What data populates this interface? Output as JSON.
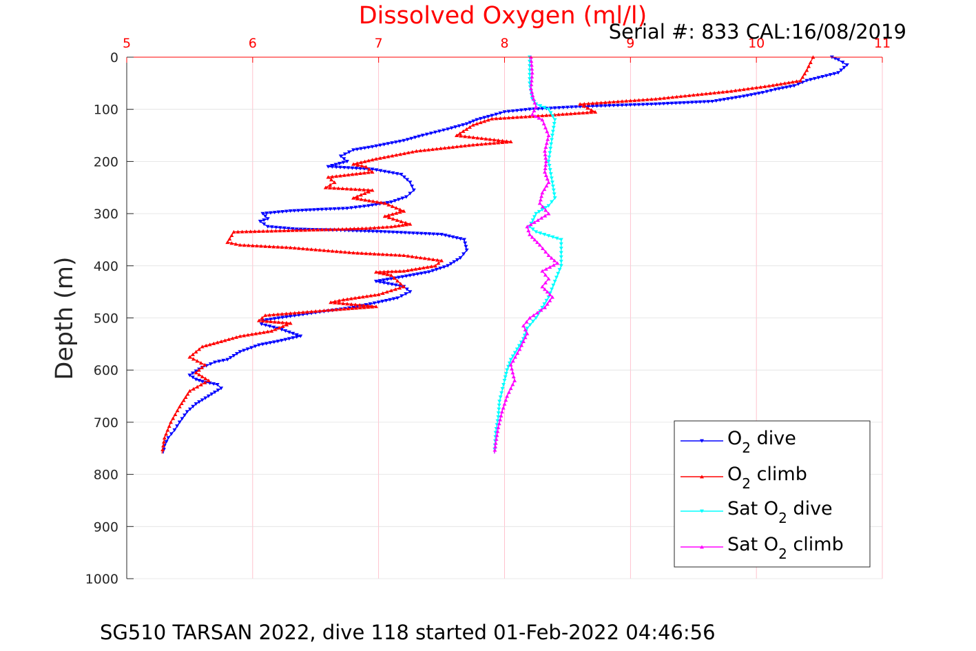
{
  "chart_data": {
    "type": "line",
    "title": "Dissolved Oxygen (ml/l)",
    "subtitle": "Serial #: 833  CAL:16/08/2019",
    "footer": "SG510 TARSAN 2022, dive 118 started 01-Feb-2022 04:46:56",
    "xlabel": "",
    "ylabel": "Depth (m)",
    "xlim": [
      5,
      11
    ],
    "ylim": [
      0,
      1000
    ],
    "y_reversed": true,
    "x_ticks": [
      "5",
      "6",
      "7",
      "8",
      "9",
      "10",
      "11"
    ],
    "y_ticks": [
      "0",
      "100",
      "200",
      "300",
      "400",
      "500",
      "600",
      "700",
      "800",
      "900",
      "1000"
    ],
    "x_axis_position": "top",
    "grid": true,
    "legend": {
      "position": "bottom-right",
      "entries": [
        {
          "prefix": "O",
          "sub": "2",
          "suffix": " dive",
          "color": "#0000ff",
          "marker": "down-triangle"
        },
        {
          "prefix": "O",
          "sub": "2",
          "suffix": " climb",
          "color": "#ff0000",
          "marker": "up-triangle"
        },
        {
          "prefix": "Sat O",
          "sub": "2",
          "suffix": " dive",
          "color": "#00ffff",
          "marker": "down-triangle"
        },
        {
          "prefix": "Sat O",
          "sub": "2",
          "suffix": " climb",
          "color": "#ff00ff",
          "marker": "up-triangle"
        }
      ]
    },
    "series": [
      {
        "name": "O2 dive",
        "color": "#0000ff",
        "marker": "down-triangle",
        "x": [
          10.6,
          10.65,
          10.72,
          10.65,
          10.4,
          10.3,
          10.15,
          10.05,
          9.9,
          9.65,
          9.2,
          8.6,
          8.2,
          8.0,
          7.9,
          7.78,
          7.7,
          7.55,
          7.35,
          7.2,
          6.95,
          6.8,
          6.7,
          6.75,
          6.6,
          6.95,
          7.18,
          7.25,
          7.28,
          7.22,
          7.1,
          6.92,
          6.75,
          6.55,
          6.3,
          6.08,
          6.12,
          6.06,
          6.12,
          6.35,
          6.7,
          7.05,
          7.5,
          7.68,
          7.7,
          7.65,
          7.55,
          7.4,
          7.22,
          7.1,
          6.98,
          7.2,
          7.25,
          7.15,
          7.0,
          6.8,
          6.5,
          6.3,
          6.08,
          6.07,
          6.2,
          6.38,
          6.2,
          6.05,
          5.9,
          5.8,
          5.7,
          5.6,
          5.55,
          5.5,
          5.55,
          5.6,
          5.72,
          5.75,
          5.65,
          5.55,
          5.48,
          5.42,
          5.38,
          5.33,
          5.3,
          5.29
        ],
        "y": [
          0,
          5,
          15,
          30,
          45,
          55,
          62,
          68,
          75,
          85,
          90,
          95,
          100,
          105,
          112,
          120,
          128,
          138,
          150,
          160,
          172,
          178,
          190,
          200,
          210,
          215,
          225,
          240,
          255,
          268,
          278,
          285,
          290,
          292,
          295,
          300,
          310,
          315,
          325,
          330,
          332,
          335,
          340,
          350,
          370,
          385,
          400,
          412,
          420,
          425,
          430,
          440,
          450,
          462,
          470,
          480,
          490,
          497,
          505,
          512,
          520,
          535,
          545,
          552,
          565,
          580,
          585,
          595,
          602,
          610,
          618,
          622,
          628,
          635,
          650,
          665,
          680,
          700,
          715,
          730,
          745,
          760
        ]
      },
      {
        "name": "O2 climb",
        "color": "#ff0000",
        "marker": "up-triangle",
        "x": [
          10.45,
          10.43,
          10.4,
          10.35,
          10.1,
          9.8,
          9.2,
          8.6,
          8.72,
          8.3,
          7.9,
          7.75,
          7.62,
          8.05,
          7.75,
          7.3,
          6.98,
          6.8,
          6.9,
          6.95,
          6.6,
          6.65,
          6.58,
          6.95,
          6.8,
          7.05,
          7.2,
          7.05,
          7.18,
          7.25,
          7.1,
          6.9,
          6.65,
          5.85,
          5.8,
          5.9,
          6.3,
          6.8,
          7.2,
          7.5,
          7.45,
          7.2,
          6.98,
          7.1,
          7.2,
          7.0,
          6.72,
          6.62,
          6.98,
          6.6,
          6.1,
          6.05,
          6.3,
          6.15,
          5.9,
          5.75,
          5.6,
          5.5,
          5.62,
          5.55,
          5.65,
          5.5,
          5.42,
          5.35,
          5.3,
          5.28
        ],
        "y": [
          0,
          10,
          25,
          45,
          55,
          65,
          80,
          90,
          105,
          112,
          118,
          130,
          150,
          162,
          168,
          180,
          195,
          205,
          210,
          220,
          230,
          240,
          250,
          255,
          270,
          280,
          295,
          305,
          315,
          320,
          325,
          328,
          330,
          335,
          355,
          360,
          365,
          375,
          380,
          390,
          400,
          410,
          412,
          418,
          440,
          455,
          465,
          470,
          478,
          485,
          495,
          505,
          510,
          525,
          535,
          545,
          555,
          575,
          590,
          605,
          620,
          640,
          670,
          700,
          730,
          760
        ]
      },
      {
        "name": "Sat O2 dive",
        "color": "#00ffff",
        "marker": "down-triangle",
        "x": [
          8.2,
          8.2,
          8.22,
          8.25,
          8.35,
          8.4,
          8.38,
          8.35,
          8.38,
          8.4,
          8.35,
          8.25,
          8.2,
          8.25,
          8.45,
          8.45,
          8.4,
          8.35,
          8.3,
          8.25,
          8.18,
          8.15,
          8.1,
          8.05,
          8.02,
          8.0,
          7.96,
          7.95,
          7.93,
          7.92
        ],
        "y": [
          0,
          50,
          80,
          90,
          100,
          120,
          150,
          200,
          240,
          270,
          285,
          300,
          325,
          335,
          350,
          400,
          430,
          460,
          480,
          500,
          520,
          540,
          560,
          580,
          600,
          620,
          660,
          690,
          720,
          760
        ]
      },
      {
        "name": "Sat O2 climb",
        "color": "#ff00ff",
        "marker": "up-triangle",
        "x": [
          8.21,
          8.22,
          8.21,
          8.23,
          8.25,
          8.22,
          8.3,
          8.35,
          8.32,
          8.33,
          8.32,
          8.35,
          8.3,
          8.28,
          8.35,
          8.18,
          8.2,
          8.28,
          8.35,
          8.42,
          8.3,
          8.35,
          8.3,
          8.38,
          8.32,
          8.2,
          8.15,
          8.18,
          8.12,
          8.05,
          8.08,
          8.02,
          7.98,
          7.95,
          7.93,
          7.92
        ],
        "y": [
          0,
          30,
          60,
          80,
          95,
          110,
          120,
          150,
          180,
          200,
          220,
          240,
          260,
          280,
          300,
          325,
          340,
          360,
          380,
          395,
          410,
          425,
          440,
          460,
          480,
          500,
          515,
          530,
          560,
          590,
          620,
          650,
          680,
          710,
          740,
          760
        ]
      }
    ]
  }
}
